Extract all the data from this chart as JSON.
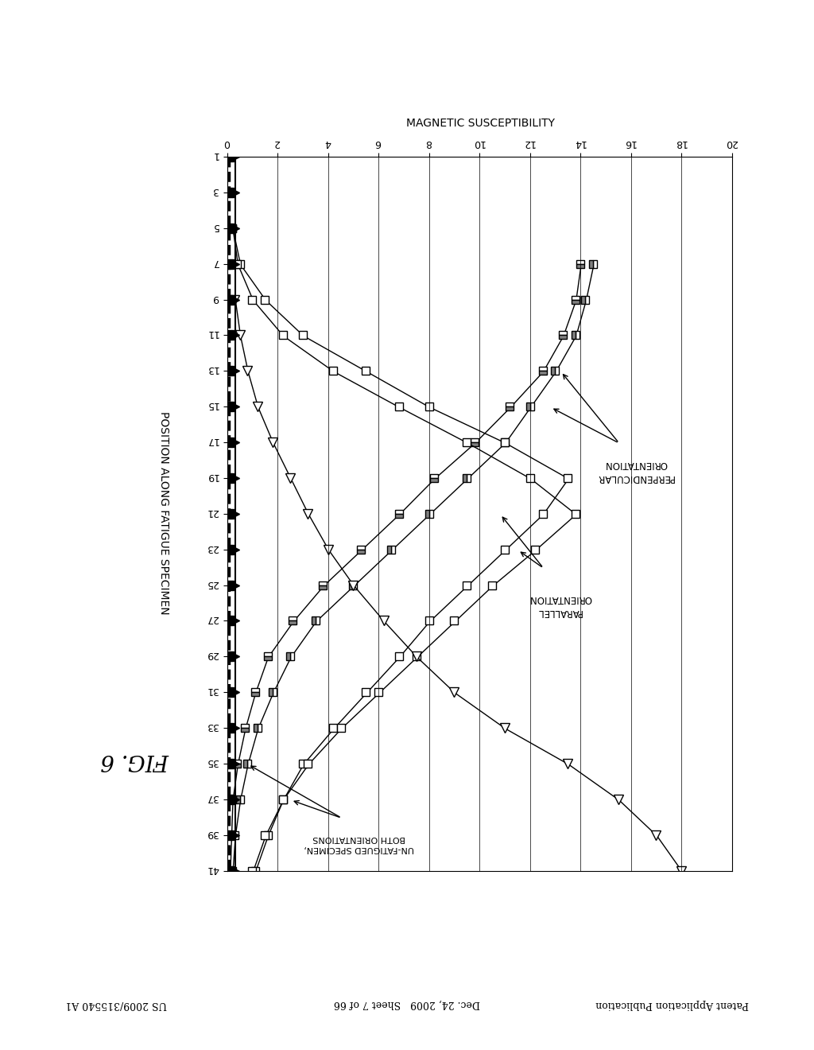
{
  "title": "FIG. 6",
  "xlabel": "MAGNETIC SUSCEPTIBILITY",
  "ylabel": "POSITION ALONG FATIGUE SPECIMEN",
  "header_left": "Patent Application Publication",
  "header_center": "Dec. 24, 2009   Sheet 7 of 66",
  "header_right": "US 2009/315540 A1",
  "x_ticks": [
    0,
    2,
    4,
    6,
    8,
    10,
    12,
    14,
    16,
    18,
    20
  ],
  "y_ticks": [
    1,
    3,
    5,
    7,
    9,
    11,
    13,
    15,
    17,
    19,
    21,
    23,
    25,
    27,
    29,
    31,
    33,
    35,
    37,
    39,
    41
  ],
  "background_color": "#ffffff",
  "annotation_perp": "PERPENDICULAR\nORIENTATION",
  "annotation_parallel": "PARALLEL\nORIENTATION",
  "annotation_unfat": "UN-FATIGUED SPECIMEN,\nBOTH ORIENTATIONS",
  "perp1_pos": [
    7,
    9,
    11,
    13,
    15,
    17,
    19,
    21,
    23,
    25,
    27,
    29,
    31,
    33,
    35,
    37,
    39,
    41
  ],
  "perp1_val": [
    14.5,
    14.2,
    13.8,
    13.0,
    12.0,
    11.0,
    9.5,
    8.0,
    6.5,
    5.0,
    3.5,
    2.5,
    1.8,
    1.2,
    0.8,
    0.5,
    0.3,
    0.2
  ],
  "perp2_pos": [
    7,
    9,
    11,
    13,
    15,
    17,
    19,
    21,
    23,
    25,
    27,
    29,
    31,
    33,
    35,
    37,
    39,
    41
  ],
  "perp2_val": [
    14.0,
    13.8,
    13.3,
    12.5,
    11.2,
    9.8,
    8.2,
    6.8,
    5.3,
    3.8,
    2.6,
    1.6,
    1.1,
    0.7,
    0.4,
    0.2,
    0.15,
    0.1
  ],
  "par1_pos": [
    5,
    7,
    9,
    11,
    13,
    15,
    17,
    19,
    21,
    23,
    25,
    27,
    29,
    31,
    33,
    35,
    37,
    39,
    41
  ],
  "par1_val": [
    0.2,
    0.5,
    1.5,
    3.0,
    5.5,
    8.0,
    11.0,
    13.5,
    12.5,
    11.0,
    9.5,
    8.0,
    6.8,
    5.5,
    4.2,
    3.0,
    2.2,
    1.6,
    1.1
  ],
  "par2_pos": [
    5,
    7,
    9,
    11,
    13,
    15,
    17,
    19,
    21,
    23,
    25,
    27,
    29,
    31,
    33,
    35,
    37,
    39,
    41
  ],
  "par2_val": [
    0.2,
    0.4,
    1.0,
    2.2,
    4.2,
    6.8,
    9.5,
    12.0,
    13.8,
    12.2,
    10.5,
    9.0,
    7.5,
    6.0,
    4.5,
    3.2,
    2.2,
    1.5,
    1.0
  ],
  "unfat_tri_pos": [
    9,
    11,
    13,
    15,
    17,
    19,
    21,
    23,
    25,
    27,
    29,
    31,
    33,
    35,
    37,
    39,
    41
  ],
  "unfat_tri_val": [
    0.3,
    0.5,
    0.8,
    1.2,
    1.8,
    2.5,
    3.2,
    4.0,
    5.0,
    6.2,
    7.5,
    9.0,
    11.0,
    13.5,
    15.5,
    17.0,
    18.0
  ],
  "unfat_solid_pos": [
    1,
    3,
    5,
    7,
    9,
    11,
    13,
    15,
    17,
    19,
    21,
    23,
    25,
    27,
    29,
    31,
    33,
    35,
    37,
    39,
    41
  ],
  "unfat_solid_val": [
    0.08,
    0.08,
    0.08,
    0.08,
    0.08,
    0.08,
    0.08,
    0.08,
    0.08,
    0.08,
    0.08,
    0.08,
    0.08,
    0.08,
    0.08,
    0.08,
    0.08,
    0.08,
    0.08,
    0.08,
    0.08
  ],
  "unfat_filled_pos": [
    1,
    3,
    5,
    7,
    9,
    11,
    13,
    15,
    17,
    19,
    21,
    23,
    25,
    27,
    29,
    31,
    33,
    35,
    37,
    39,
    41
  ],
  "unfat_filled_val": [
    0.3,
    0.3,
    0.3,
    0.3,
    0.3,
    0.3,
    0.3,
    0.3,
    0.3,
    0.3,
    0.3,
    0.3,
    0.3,
    0.3,
    0.3,
    0.3,
    0.3,
    0.3,
    0.3,
    0.3,
    0.3
  ]
}
